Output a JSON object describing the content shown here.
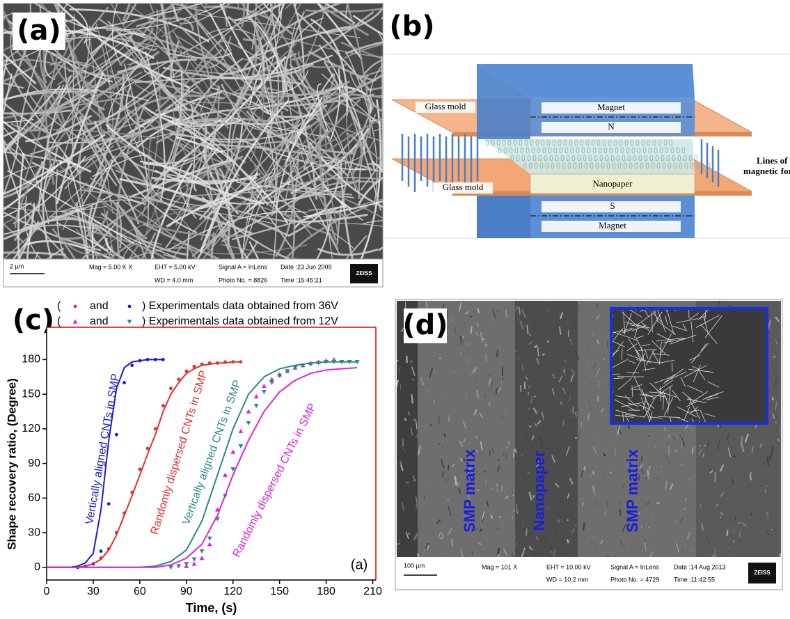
{
  "panel_labels": [
    "(a)",
    "(b)",
    "(c)",
    "(d)"
  ],
  "sem_a": {
    "scale_bar": "2 µm",
    "mag": "Mag =  5.00 K X",
    "eht": "EHT =  5.00 kV",
    "wd": "WD =  4.0 mm",
    "signal": "Signal A = InLens",
    "photo": "Photo No. = 8826",
    "date": "Date :23 Jun 2009",
    "time": "Time :15:45:21",
    "logo": "ZEISS"
  },
  "diagram_b": {
    "glass_mold_top": "Glass mold",
    "magnet_top": "Magnet",
    "pole_n": "N",
    "field_lines": [
      "Lines of",
      "magnetic force"
    ],
    "glass_mold_bottom": "Glass mold",
    "nanopaper": "Nanopaper",
    "pole_s": "S",
    "magnet_bottom": "Magnet"
  },
  "chart_data": {
    "type": "line",
    "xlabel": "Time, (s)",
    "ylabel": "Shape recovery ratio, (Degree)",
    "xlim": [
      0,
      212
    ],
    "ylim": [
      -11,
      208
    ],
    "xticks": [
      0,
      30,
      60,
      90,
      120,
      150,
      180,
      210
    ],
    "yticks": [
      0,
      30,
      60,
      90,
      120,
      150,
      180
    ],
    "legend": [
      [
        "(",
        "and",
        ") Experimentals data obtained from 36V"
      ],
      [
        "(",
        "and",
        ") Experimentals data obtained from 12V"
      ]
    ],
    "annotations": [
      {
        "text": "Vertically aligned CNTs in SMP",
        "color": "#1a1ad0"
      },
      {
        "text": "Randomly dispersed CNTs in SMP",
        "color": "#e0302a"
      },
      {
        "text": "Vertically aligned CNTs in SMP",
        "color": "#2a8a80"
      },
      {
        "text": "Randomly dispersed CNTs in SMP",
        "color": "#e020e0"
      },
      {
        "text": "(a)",
        "color": "#000000"
      }
    ],
    "series": [
      {
        "color": "#e0302a",
        "marker": "circle",
        "x": [
          25,
          30,
          35,
          40,
          45,
          50,
          55,
          60,
          65,
          70,
          75,
          80,
          85,
          90,
          95,
          100,
          105,
          110,
          115,
          120,
          125
        ],
        "values": [
          1,
          3,
          8,
          16,
          30,
          47,
          65,
          85,
          103,
          120,
          140,
          155,
          163,
          170,
          174,
          176,
          177,
          177,
          178,
          178,
          178
        ]
      },
      {
        "color": "#1a1ad0",
        "marker": "circle",
        "x": [
          20,
          25,
          30,
          35,
          40,
          45,
          50,
          55,
          60,
          65,
          70,
          75
        ],
        "values": [
          0,
          1,
          3,
          14,
          55,
          115,
          160,
          175,
          179,
          180,
          180,
          180
        ]
      },
      {
        "color": "#e020e0",
        "marker": "triangle-up",
        "x": [
          90,
          95,
          100,
          105,
          110,
          115,
          120,
          125,
          130,
          135,
          140,
          145,
          150,
          155,
          160,
          165,
          170,
          175,
          180,
          185
        ],
        "values": [
          1,
          3,
          8,
          20,
          50,
          80,
          100,
          118,
          135,
          148,
          157,
          163,
          167,
          170,
          173,
          175,
          177,
          178,
          179,
          180
        ]
      },
      {
        "color": "#2a8a80",
        "marker": "triangle-down",
        "x": [
          80,
          85,
          90,
          95,
          100,
          105,
          110,
          115,
          120,
          125,
          130,
          135,
          140,
          145,
          150,
          155,
          160,
          165,
          170,
          175,
          180,
          185,
          190,
          195,
          200
        ],
        "values": [
          0,
          1,
          3,
          7,
          14,
          25,
          42,
          62,
          85,
          105,
          125,
          140,
          152,
          160,
          166,
          170,
          173,
          175,
          176,
          177,
          178,
          178,
          178,
          178,
          178
        ]
      },
      {
        "color": "#1a1ad0",
        "marker": "none",
        "x": [
          0,
          5,
          10,
          15,
          20,
          25,
          30,
          35,
          40,
          45,
          50,
          55,
          60,
          65,
          70,
          75
        ],
        "values": [
          0,
          0,
          0,
          0,
          1,
          4,
          12,
          50,
          110,
          155,
          173,
          178,
          179,
          180,
          180,
          180
        ]
      },
      {
        "color": "#e0302a",
        "marker": "none",
        "x": [
          0,
          5,
          10,
          15,
          20,
          25,
          30,
          35,
          40,
          45,
          50,
          55,
          60,
          65,
          70,
          75,
          80,
          85,
          90,
          95,
          100,
          105,
          110,
          115,
          120,
          125
        ],
        "values": [
          0,
          0,
          0,
          0,
          0,
          1,
          3,
          7,
          15,
          28,
          45,
          62,
          80,
          98,
          115,
          135,
          150,
          160,
          168,
          172,
          175,
          176,
          177,
          177,
          178,
          178
        ]
      },
      {
        "color": "#2a8a80",
        "marker": "none",
        "x": [
          0,
          10,
          20,
          30,
          40,
          50,
          60,
          70,
          80,
          90,
          100,
          110,
          120,
          130,
          140,
          150,
          160,
          170,
          180,
          190,
          200
        ],
        "values": [
          0,
          0,
          0,
          0,
          0,
          0,
          0,
          1,
          5,
          15,
          40,
          80,
          120,
          150,
          165,
          172,
          175,
          177,
          178,
          178,
          178
        ]
      },
      {
        "color": "#e020e0",
        "marker": "none",
        "x": [
          0,
          10,
          20,
          30,
          40,
          50,
          60,
          70,
          80,
          90,
          100,
          110,
          120,
          130,
          140,
          150,
          160,
          170,
          180,
          190,
          200
        ],
        "values": [
          0,
          0,
          0,
          0,
          0,
          0,
          0,
          0,
          2,
          8,
          20,
          45,
          80,
          110,
          135,
          152,
          162,
          168,
          171,
          172,
          173
        ]
      }
    ]
  },
  "sem_d": {
    "regions": [
      "SMP matrix",
      "Nanopaper",
      "SMP matrix"
    ],
    "scale_bar": "100 µm",
    "mag": "Mag =   101 X",
    "eht": "EHT = 10.00 kV",
    "wd": "WD = 10.2 mm",
    "signal": "Signal A = InLens",
    "photo": "Photo No. = 4729",
    "date": "Date :14 Aug 2013",
    "time": "Time :11:42:55",
    "logo": "ZEISS"
  }
}
